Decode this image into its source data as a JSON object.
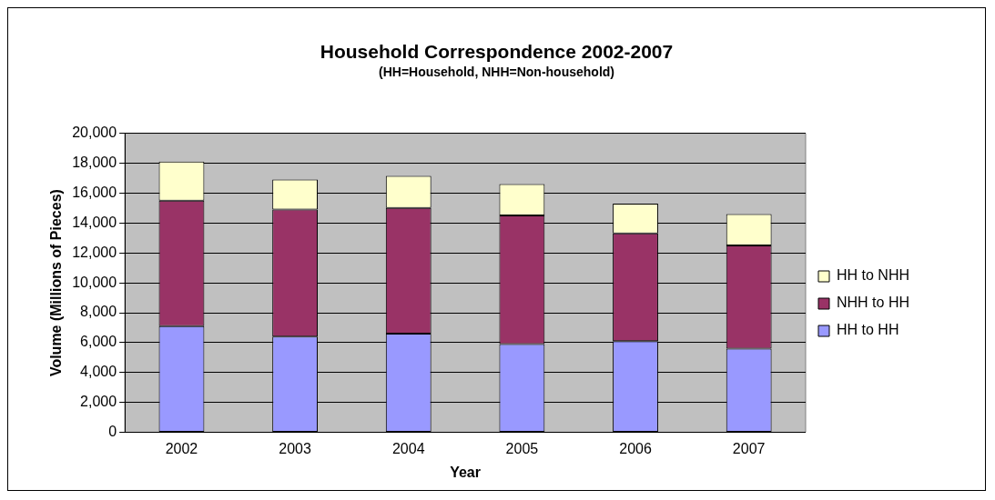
{
  "chart_data": {
    "type": "bar",
    "title": "Household Correspondence 2002-2007",
    "subtitle": "(HH=Household, NHH=Non-household)",
    "xlabel": "Year",
    "ylabel": "Volume (Millions of Pieces)",
    "categories": [
      "2002",
      "2003",
      "2004",
      "2005",
      "2006",
      "2007"
    ],
    "series": [
      {
        "name": "HH to HH",
        "color": "#9999ff",
        "values": [
          7100,
          6400,
          6600,
          5900,
          6100,
          5600
        ]
      },
      {
        "name": "NHH to HH",
        "color": "#993366",
        "values": [
          8400,
          8500,
          8400,
          8600,
          7200,
          6900
        ]
      },
      {
        "name": "HH to NHH",
        "color": "#ffffcc",
        "values": [
          2600,
          2000,
          2150,
          2100,
          2000,
          2100
        ]
      }
    ],
    "stacked": true,
    "ylim": [
      0,
      20000
    ],
    "yticks": [
      {
        "value": 0,
        "label": "0"
      },
      {
        "value": 2000,
        "label": "2,000"
      },
      {
        "value": 4000,
        "label": "4,000"
      },
      {
        "value": 6000,
        "label": "6,000"
      },
      {
        "value": 8000,
        "label": "8,000"
      },
      {
        "value": 10000,
        "label": "10,000"
      },
      {
        "value": 12000,
        "label": "12,000"
      },
      {
        "value": 14000,
        "label": "14,000"
      },
      {
        "value": 16000,
        "label": "16,000"
      },
      {
        "value": 18000,
        "label": "18,000"
      },
      {
        "value": 20000,
        "label": "20,000"
      }
    ],
    "grid": "y",
    "legend": "right"
  }
}
